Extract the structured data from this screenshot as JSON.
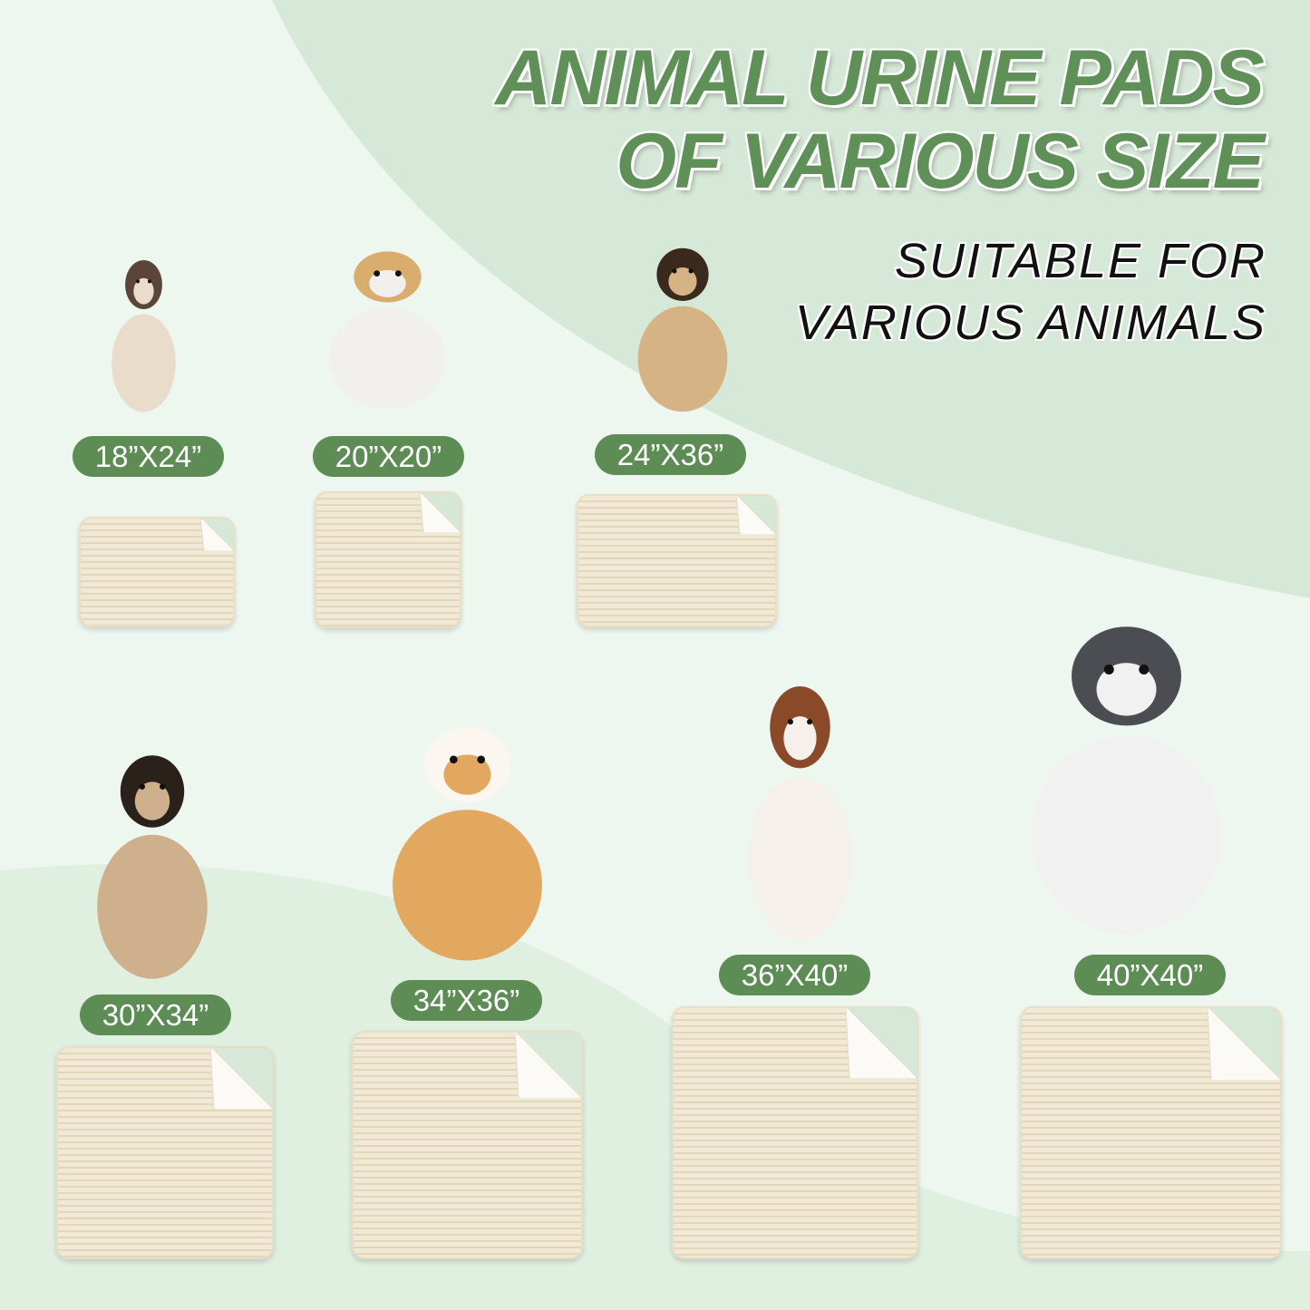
{
  "title": {
    "line1": "ANIMAL URINE PADS",
    "line2": "OF VARIOUS SIZE"
  },
  "subtitle": {
    "line1": "SUITABLE FOR",
    "line2": "VARIOUS ANIMALS"
  },
  "colors": {
    "accent_green": "#5e8c55",
    "pad_beige": "#f1e9d5",
    "background": "#dcebdd"
  },
  "products": [
    {
      "size": "18”X24”",
      "animal": "siamese-cat"
    },
    {
      "size": "20”X20”",
      "animal": "cat-and-puppy"
    },
    {
      "size": "24”X36”",
      "animal": "tan-dog"
    },
    {
      "size": "30”X34”",
      "animal": "pug"
    },
    {
      "size": "34”X36”",
      "animal": "corgi"
    },
    {
      "size": "36”X40”",
      "animal": "australian-shepherd"
    },
    {
      "size": "40”X40”",
      "animal": "husky"
    }
  ]
}
